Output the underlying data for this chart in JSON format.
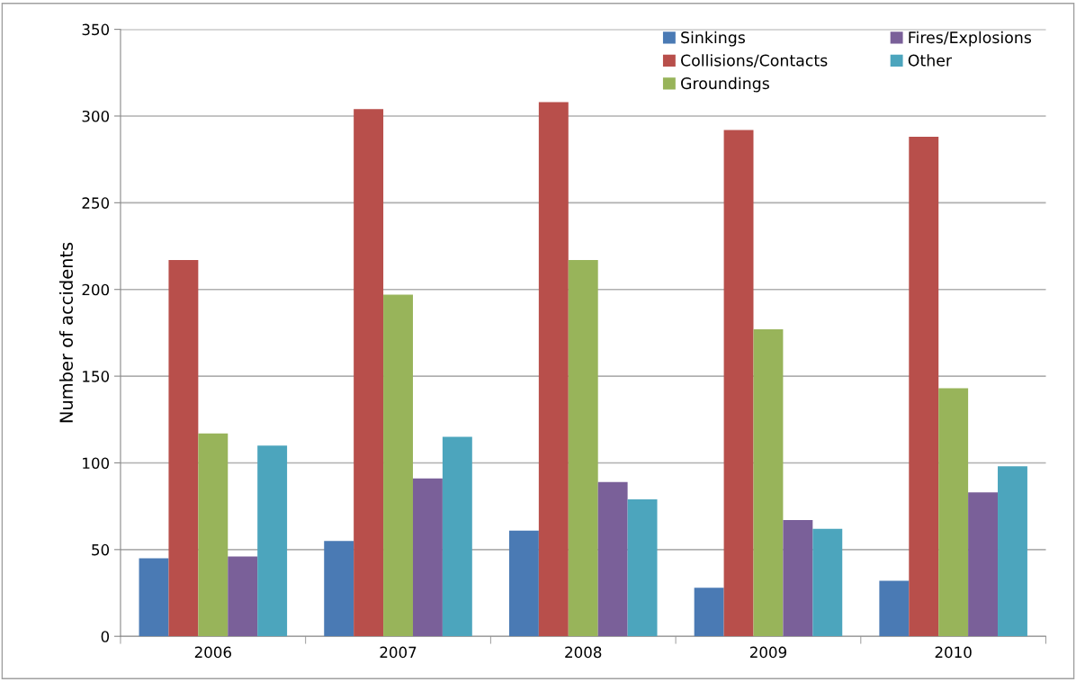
{
  "chart_data": {
    "type": "bar",
    "ylabel": "Number of accidents",
    "categories": [
      "2006",
      "2007",
      "2008",
      "2009",
      "2010"
    ],
    "series": [
      {
        "name": "Sinkings",
        "color": "#4a7ab4",
        "values": [
          45,
          55,
          61,
          28,
          32
        ]
      },
      {
        "name": "Collisions/Contacts",
        "color": "#b84f4b",
        "values": [
          217,
          304,
          308,
          292,
          288
        ]
      },
      {
        "name": "Groundings",
        "color": "#98b45a",
        "values": [
          117,
          197,
          217,
          177,
          143
        ]
      },
      {
        "name": "Fires/Explosions",
        "color": "#7a6099",
        "values": [
          46,
          91,
          89,
          67,
          83
        ]
      },
      {
        "name": "Other",
        "color": "#4ca5bd",
        "values": [
          110,
          115,
          79,
          62,
          98
        ]
      }
    ],
    "ylim": [
      0,
      350
    ],
    "yticks": [
      0,
      50,
      100,
      150,
      200,
      250,
      300,
      350
    ],
    "grid": "y",
    "legend": "top right"
  }
}
